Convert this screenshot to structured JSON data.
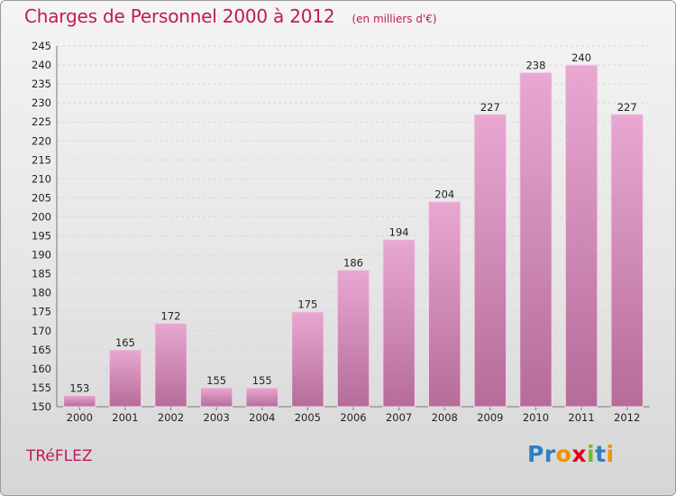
{
  "header": {
    "title": "Charges de Personnel 2000 à 2012",
    "subtitle": "(en milliers d'€)"
  },
  "town": "TRéFLEZ",
  "logo": {
    "letters": [
      {
        "ch": "P",
        "color": "#2f7fc1"
      },
      {
        "ch": "r",
        "color": "#2f7fc1"
      },
      {
        "ch": "o",
        "color": "#f39200"
      },
      {
        "ch": "x",
        "color": "#e2001a"
      },
      {
        "ch": "i",
        "color": "#7ab929"
      },
      {
        "ch": "t",
        "color": "#2f7fc1"
      },
      {
        "ch": "i",
        "color": "#f39200"
      }
    ]
  },
  "colors": {
    "title": "#c2185b",
    "bar_top": "#e8a8d2",
    "bar_bottom": "#b56c98",
    "grid": "#d8d8d8"
  },
  "chart_data": {
    "type": "bar",
    "title": "Charges de Personnel 2000 à 2012",
    "subtitle": "(en milliers d'€)",
    "categories": [
      "2000",
      "2001",
      "2002",
      "2003",
      "2004",
      "2005",
      "2006",
      "2007",
      "2008",
      "2009",
      "2010",
      "2011",
      "2012"
    ],
    "values": [
      153,
      165,
      172,
      155,
      155,
      175,
      186,
      194,
      204,
      227,
      238,
      240,
      227
    ],
    "ylim": [
      150,
      245
    ],
    "yticks": [
      150,
      155,
      160,
      165,
      170,
      175,
      180,
      185,
      190,
      195,
      200,
      205,
      210,
      215,
      220,
      225,
      230,
      235,
      240,
      245
    ],
    "grid": true
  }
}
